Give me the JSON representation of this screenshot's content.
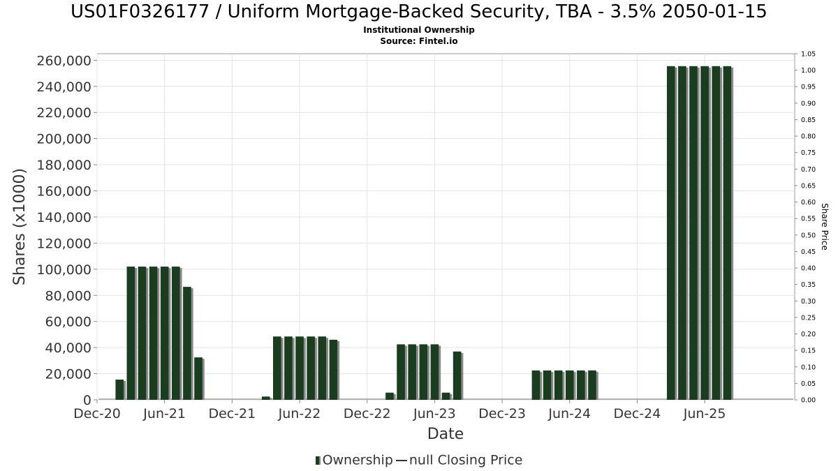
{
  "title": "US01F0326177 / Uniform Mortgage-Backed Security, TBA - 3.5% 2050-01-15",
  "subtitle": "Institutional Ownership",
  "source": "Source: Fintel.io",
  "legend": {
    "ownership_label": "Ownership",
    "price_label": "null Closing Price"
  },
  "chart_data": {
    "type": "bar",
    "xlabel": "Date",
    "ylabel": "Shares (x1000)",
    "y2label": "Share Price",
    "ylim": [
      0,
      265000
    ],
    "y2lim": [
      0,
      1.05
    ],
    "y_ticks": [
      0,
      20000,
      40000,
      60000,
      80000,
      100000,
      120000,
      140000,
      160000,
      180000,
      200000,
      220000,
      240000,
      260000
    ],
    "y_tick_labels": [
      "0",
      "20,000",
      "40,000",
      "60,000",
      "80,000",
      "100,000",
      "120,000",
      "140,000",
      "160,000",
      "180,000",
      "200,000",
      "220,000",
      "240,000",
      "260,000"
    ],
    "y2_ticks": [
      0.0,
      0.05,
      0.1,
      0.15,
      0.2,
      0.25,
      0.3,
      0.35,
      0.4,
      0.45,
      0.5,
      0.55,
      0.6,
      0.65,
      0.7,
      0.75,
      0.8,
      0.85,
      0.9,
      0.95,
      1.0,
      1.05
    ],
    "y2_tick_labels": [
      "0.00",
      "0.05",
      "0.10",
      "0.15",
      "0.20",
      "0.25",
      "0.30",
      "0.35",
      "0.40",
      "0.45",
      "0.50",
      "0.55",
      "0.60",
      "0.65",
      "0.70",
      "0.75",
      "0.80",
      "0.85",
      "0.90",
      "0.95",
      "1.00",
      "1.05"
    ],
    "x_tick_labels": [
      "Dec-20",
      "Jun-21",
      "Dec-21",
      "Jun-22",
      "Dec-22",
      "Jun-23",
      "Dec-23",
      "Jun-24",
      "Dec-24",
      "Jun-25"
    ],
    "x_tick_dates": [
      "2020-12",
      "2021-06",
      "2021-12",
      "2022-06",
      "2022-12",
      "2023-06",
      "2023-12",
      "2024-06",
      "2024-12",
      "2025-06"
    ],
    "x_range": [
      "2020-12",
      "2026-02"
    ],
    "grid": true,
    "legend_position": "bottom",
    "series": [
      {
        "name": "Ownership",
        "color": "#1a3d20",
        "points": [
          {
            "date": "2021-02",
            "value": 15500
          },
          {
            "date": "2021-03",
            "value": 102000
          },
          {
            "date": "2021-04",
            "value": 102000
          },
          {
            "date": "2021-05",
            "value": 102000
          },
          {
            "date": "2021-06",
            "value": 102000
          },
          {
            "date": "2021-07",
            "value": 102000
          },
          {
            "date": "2021-08",
            "value": 86500
          },
          {
            "date": "2021-09",
            "value": 32500
          },
          {
            "date": "2022-03",
            "value": 2500
          },
          {
            "date": "2022-04",
            "value": 48500
          },
          {
            "date": "2022-05",
            "value": 48500
          },
          {
            "date": "2022-06",
            "value": 48500
          },
          {
            "date": "2022-07",
            "value": 48500
          },
          {
            "date": "2022-08",
            "value": 48500
          },
          {
            "date": "2022-09",
            "value": 46000
          },
          {
            "date": "2023-02",
            "value": 5500
          },
          {
            "date": "2023-03",
            "value": 42500
          },
          {
            "date": "2023-04",
            "value": 42500
          },
          {
            "date": "2023-05",
            "value": 42500
          },
          {
            "date": "2023-06",
            "value": 42500
          },
          {
            "date": "2023-07",
            "value": 5500
          },
          {
            "date": "2023-08",
            "value": 37000
          },
          {
            "date": "2024-03",
            "value": 22500
          },
          {
            "date": "2024-04",
            "value": 22500
          },
          {
            "date": "2024-05",
            "value": 22500
          },
          {
            "date": "2024-06",
            "value": 22500
          },
          {
            "date": "2024-07",
            "value": 22500
          },
          {
            "date": "2024-08",
            "value": 22500
          },
          {
            "date": "2025-03",
            "value": 255500
          },
          {
            "date": "2025-04",
            "value": 255500
          },
          {
            "date": "2025-05",
            "value": 255500
          },
          {
            "date": "2025-06",
            "value": 255500
          },
          {
            "date": "2025-07",
            "value": 255500
          },
          {
            "date": "2025-08",
            "value": 255500
          }
        ]
      }
    ]
  }
}
